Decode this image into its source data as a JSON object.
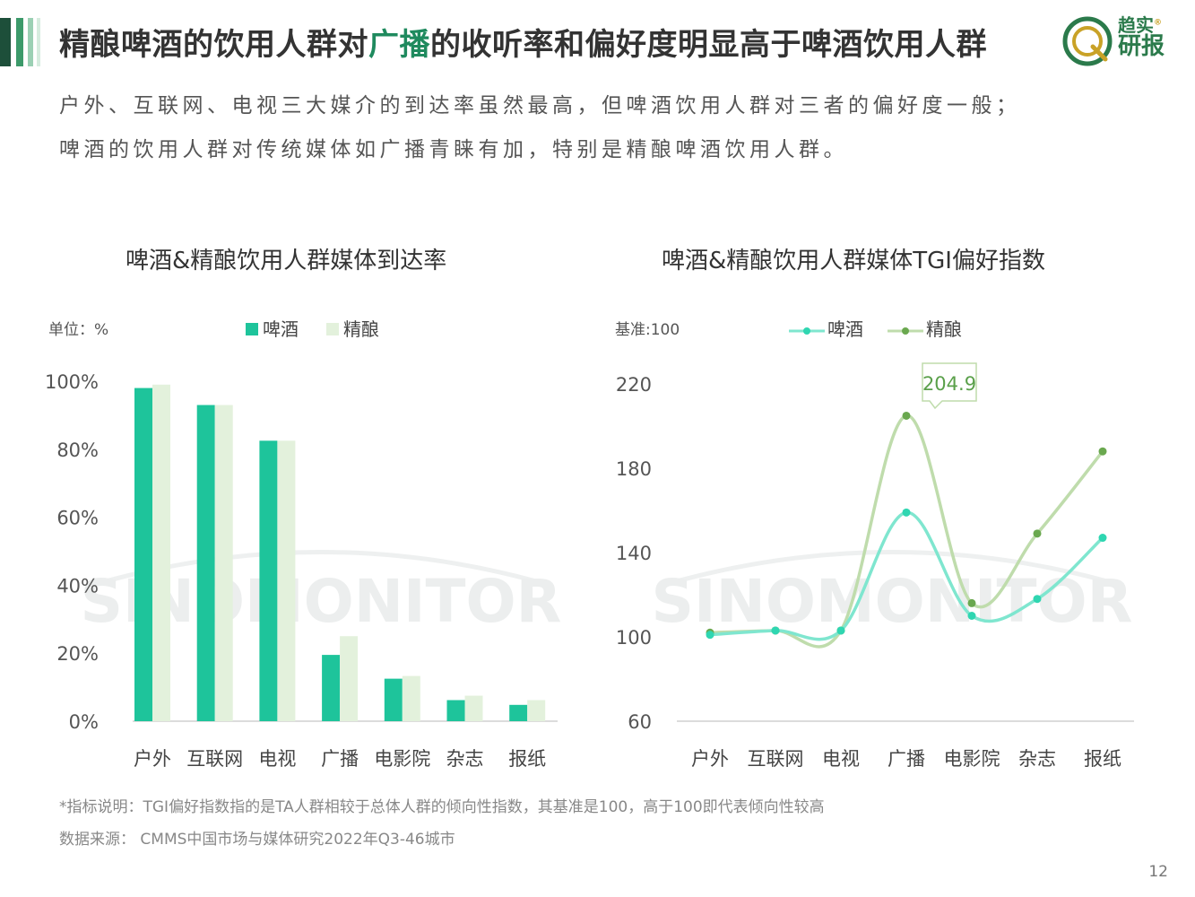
{
  "header": {
    "title_pre": "精酿啤酒的饮用人群对",
    "title_highlight": "广播",
    "title_post": "的收听率和偏好度明显高于啤酒饮用人群",
    "logo_line1": "趋实",
    "logo_line2": "研报",
    "logo_mark": "®"
  },
  "subtitle": {
    "line1": "户外、互联网、电视三大媒介的到达率虽然最高，但啤酒饮用人群对三者的偏好度一般；",
    "line2": "啤酒的饮用人群对传统媒体如广播青睐有加，特别是精酿啤酒饮用人群。"
  },
  "watermark": "SINOMONITOR",
  "colors": {
    "accent_dark": "#1d4f3a",
    "accent_green": "#1f8a5e",
    "beer_bar": "#1ec49b",
    "craft_bar": "#e3f1dc",
    "beer_line": "#7fe6cf",
    "craft_line": "#bfdcac",
    "beer_point": "#2fd6b1",
    "craft_point": "#6aa84f"
  },
  "chart_data": [
    {
      "type": "bar",
      "title": "啤酒&精酿饮用人群媒体到达率",
      "unit_label": "单位：%",
      "categories": [
        "户外",
        "互联网",
        "电视",
        "广播",
        "电影院",
        "杂志",
        "报纸"
      ],
      "series": [
        {
          "name": "啤酒",
          "values": [
            98.0,
            93.0,
            82.5,
            19.5,
            12.5,
            6.2,
            4.8
          ]
        },
        {
          "name": "精酿",
          "values": [
            99.0,
            93.0,
            82.5,
            25.0,
            13.3,
            7.5,
            6.2
          ]
        }
      ],
      "ylim": [
        0,
        100
      ],
      "yticks": [
        "0%",
        "20%",
        "40%",
        "60%",
        "80%",
        "100%"
      ],
      "legend_position": "top"
    },
    {
      "type": "line",
      "title": "啤酒&精酿饮用人群媒体TGI偏好指数",
      "unit_label": "基准:100",
      "categories": [
        "户外",
        "互联网",
        "电视",
        "广播",
        "电影院",
        "杂志",
        "报纸"
      ],
      "series": [
        {
          "name": "啤酒",
          "values": [
            101,
            103,
            103,
            159,
            110,
            118,
            147
          ]
        },
        {
          "name": "精酿",
          "values": [
            102,
            103,
            103,
            204.9,
            116,
            149,
            188
          ]
        }
      ],
      "ylim": [
        60,
        220
      ],
      "yticks": [
        "60",
        "100",
        "140",
        "180",
        "220"
      ],
      "callout": "204.9",
      "legend_position": "top"
    }
  ],
  "footer": {
    "note": "*指标说明：TGI偏好指数指的是TA人群相较于总体人群的倾向性指数，其基准是100，高于100即代表倾向性较高",
    "source": "数据来源： CMMS中国市场与媒体研究2022年Q3-46城市",
    "page": "12"
  }
}
